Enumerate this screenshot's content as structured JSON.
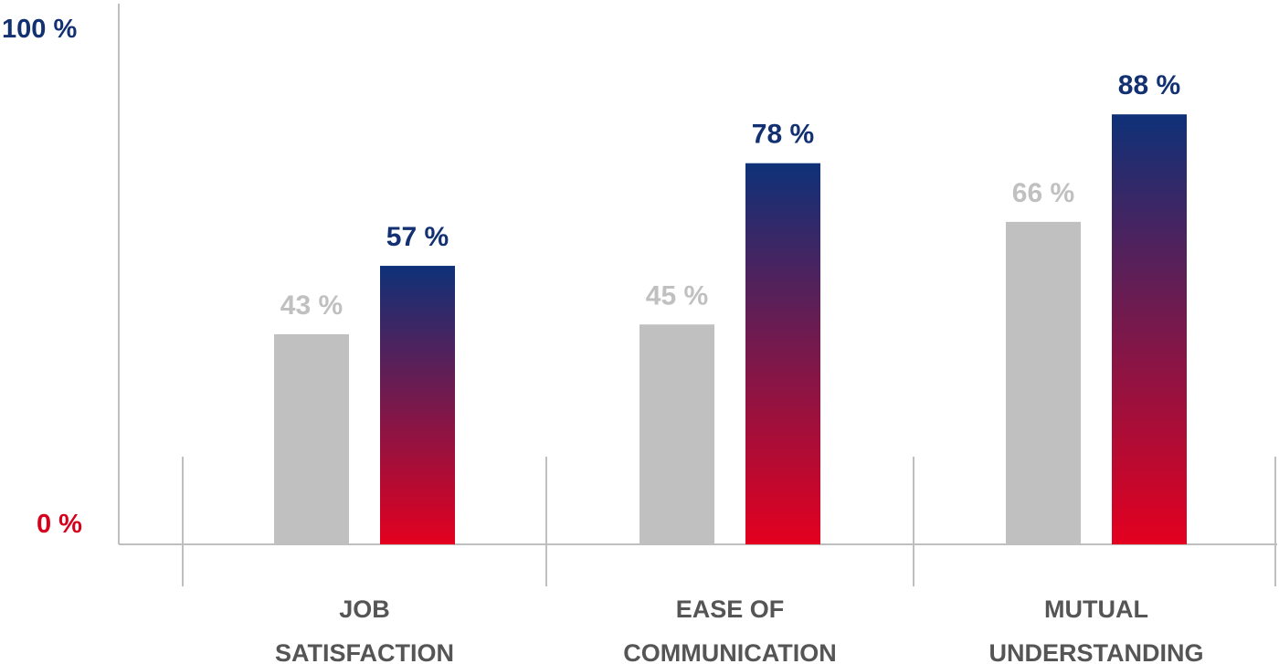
{
  "chart_data": {
    "type": "bar",
    "categories": [
      [
        "JOB",
        "SATISFACTION"
      ],
      [
        "EASE OF",
        "COMMUNICATION"
      ],
      [
        "MUTUAL",
        "UNDERSTANDING"
      ]
    ],
    "series": [
      {
        "values": [
          43,
          45,
          66
        ],
        "labels": [
          "43 %",
          "45 %",
          "66 %"
        ],
        "color": "#c0c0c0",
        "label_color": "#c0c0c0"
      },
      {
        "values": [
          57,
          78,
          88
        ],
        "labels": [
          "57 %",
          "78 %",
          "88 %"
        ],
        "gradient": [
          "#0e3178",
          "#e4001f"
        ],
        "label_color": "#123072"
      }
    ],
    "ylim": [
      0,
      100
    ],
    "y_tick_labels": {
      "max": "100 %",
      "min": "0 %"
    },
    "colors": {
      "max_label": "#123072",
      "min_label": "#d6001c",
      "axis": "#bfbfbf"
    },
    "grid": false,
    "legend": "none"
  }
}
